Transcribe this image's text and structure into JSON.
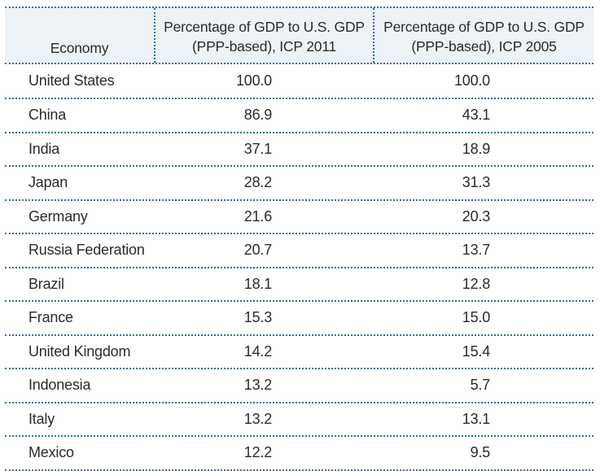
{
  "table": {
    "headers": {
      "economy": "Economy",
      "col_2011": [
        "Percentage of GDP to U.S. GDP",
        "(PPP-based), ICP 2011"
      ],
      "col_2005": [
        "Percentage of GDP to U.S. GDP",
        "(PPP-based), ICP 2005"
      ]
    },
    "header_background": "#edf2f7",
    "rule_color": "#2f6f9f"
  },
  "chart_data": {
    "type": "table",
    "columns": [
      "Economy",
      "Percentage of GDP to U.S. GDP (PPP-based), ICP 2011",
      "Percentage of GDP to U.S. GDP (PPP-based), ICP 2005"
    ],
    "rows": [
      {
        "economy": "United States",
        "icp2011": "100.0",
        "icp2005": "100.0"
      },
      {
        "economy": "China",
        "icp2011": "86.9",
        "icp2005": "43.1"
      },
      {
        "economy": "India",
        "icp2011": "37.1",
        "icp2005": "18.9"
      },
      {
        "economy": "Japan",
        "icp2011": "28.2",
        "icp2005": "31.3"
      },
      {
        "economy": "Germany",
        "icp2011": "21.6",
        "icp2005": "20.3"
      },
      {
        "economy": "Russia Federation",
        "icp2011": "20.7",
        "icp2005": "13.7"
      },
      {
        "economy": "Brazil",
        "icp2011": "18.1",
        "icp2005": "12.8"
      },
      {
        "economy": "France",
        "icp2011": "15.3",
        "icp2005": "15.0"
      },
      {
        "economy": "United Kingdom",
        "icp2011": "14.2",
        "icp2005": "15.4"
      },
      {
        "economy": "Indonesia",
        "icp2011": "13.2",
        "icp2005": "5.7"
      },
      {
        "economy": "Italy",
        "icp2011": "13.2",
        "icp2005": "13.1"
      },
      {
        "economy": "Mexico",
        "icp2011": "12.2",
        "icp2005": "9.5"
      }
    ]
  }
}
